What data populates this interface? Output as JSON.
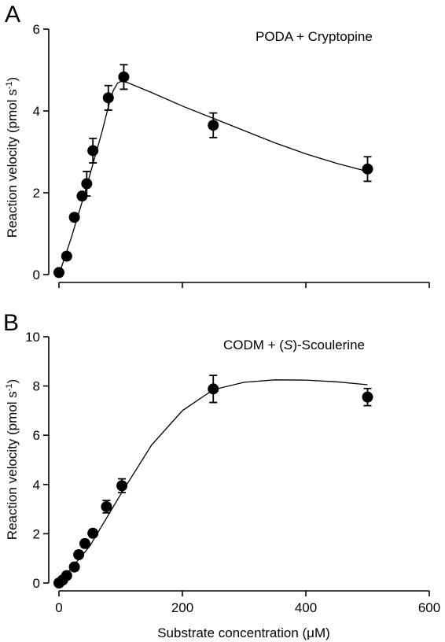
{
  "chart_data": [
    {
      "type": "scatter",
      "panel_label": "A",
      "annotation": "PODA + Cryptopine",
      "xlim": [
        0,
        600
      ],
      "ylim": [
        0,
        6
      ],
      "yticks": [
        "0",
        "2",
        "4",
        "6"
      ],
      "xticks": [
        "",
        "",
        "",
        ""
      ],
      "xticks_values": [
        0,
        200,
        400,
        600
      ],
      "yticks_values": [
        0,
        2,
        4,
        6
      ],
      "ylabel": "Reaction velocity (pmol s",
      "ylabel_sup": "-1",
      "ylabel_close": ")",
      "points": [
        {
          "x": 0,
          "y": 0.05,
          "err": 0
        },
        {
          "x": 12.5,
          "y": 0.45,
          "err": 0
        },
        {
          "x": 25,
          "y": 1.4,
          "err": 0
        },
        {
          "x": 37.5,
          "y": 1.92,
          "err": 0.08
        },
        {
          "x": 45,
          "y": 2.22,
          "err": 0.3
        },
        {
          "x": 55,
          "y": 3.03,
          "err": 0.3
        },
        {
          "x": 80,
          "y": 4.32,
          "err": 0.3
        },
        {
          "x": 105,
          "y": 4.83,
          "err": 0.3
        },
        {
          "x": 250,
          "y": 3.65,
          "err": 0.3
        },
        {
          "x": 500,
          "y": 2.58,
          "err": 0.3
        }
      ],
      "fit": [
        [
          0,
          0
        ],
        [
          20,
          0.9
        ],
        [
          40,
          1.9
        ],
        [
          55,
          2.7
        ],
        [
          70,
          3.5
        ],
        [
          80,
          4.1
        ],
        [
          88,
          4.5
        ],
        [
          95,
          4.68
        ],
        [
          100,
          4.72
        ],
        [
          110,
          4.7
        ],
        [
          150,
          4.45
        ],
        [
          200,
          4.12
        ],
        [
          250,
          3.82
        ],
        [
          300,
          3.52
        ],
        [
          350,
          3.22
        ],
        [
          400,
          2.95
        ],
        [
          450,
          2.72
        ],
        [
          500,
          2.52
        ]
      ]
    },
    {
      "type": "scatter",
      "panel_label": "B",
      "annotation_pre": "CODM + (",
      "annotation_italic": "S",
      "annotation_post": ")-Scoulerine",
      "xlim": [
        0,
        600
      ],
      "ylim": [
        0,
        10
      ],
      "yticks": [
        "0",
        "2",
        "4",
        "6",
        "8",
        "10"
      ],
      "yticks_values": [
        0,
        2,
        4,
        6,
        8,
        10
      ],
      "xticks": [
        "0",
        "200",
        "400",
        "600"
      ],
      "xticks_values": [
        0,
        200,
        400,
        600
      ],
      "xlabel": "Substrate concentration (μM)",
      "ylabel": "Reaction velocity (pmol s",
      "ylabel_sup": "-1",
      "ylabel_close": ")",
      "points": [
        {
          "x": 0,
          "y": 0,
          "err": 0
        },
        {
          "x": 6,
          "y": 0.12,
          "err": 0
        },
        {
          "x": 12.5,
          "y": 0.3,
          "err": 0
        },
        {
          "x": 25,
          "y": 0.65,
          "err": 0.1
        },
        {
          "x": 32,
          "y": 1.15,
          "err": 0.12
        },
        {
          "x": 42,
          "y": 1.6,
          "err": 0.15
        },
        {
          "x": 55,
          "y": 2.02,
          "err": 0.15
        },
        {
          "x": 77,
          "y": 3.1,
          "err": 0.25
        },
        {
          "x": 102,
          "y": 3.95,
          "err": 0.28
        },
        {
          "x": 250,
          "y": 7.88,
          "err": 0.55
        },
        {
          "x": 500,
          "y": 7.55,
          "err": 0.35
        }
      ],
      "fit": [
        [
          0,
          0
        ],
        [
          50,
          1.5
        ],
        [
          100,
          3.6
        ],
        [
          150,
          5.6
        ],
        [
          200,
          7.0
        ],
        [
          250,
          7.85
        ],
        [
          300,
          8.15
        ],
        [
          350,
          8.25
        ],
        [
          400,
          8.24
        ],
        [
          450,
          8.17
        ],
        [
          500,
          8.05
        ]
      ]
    }
  ]
}
